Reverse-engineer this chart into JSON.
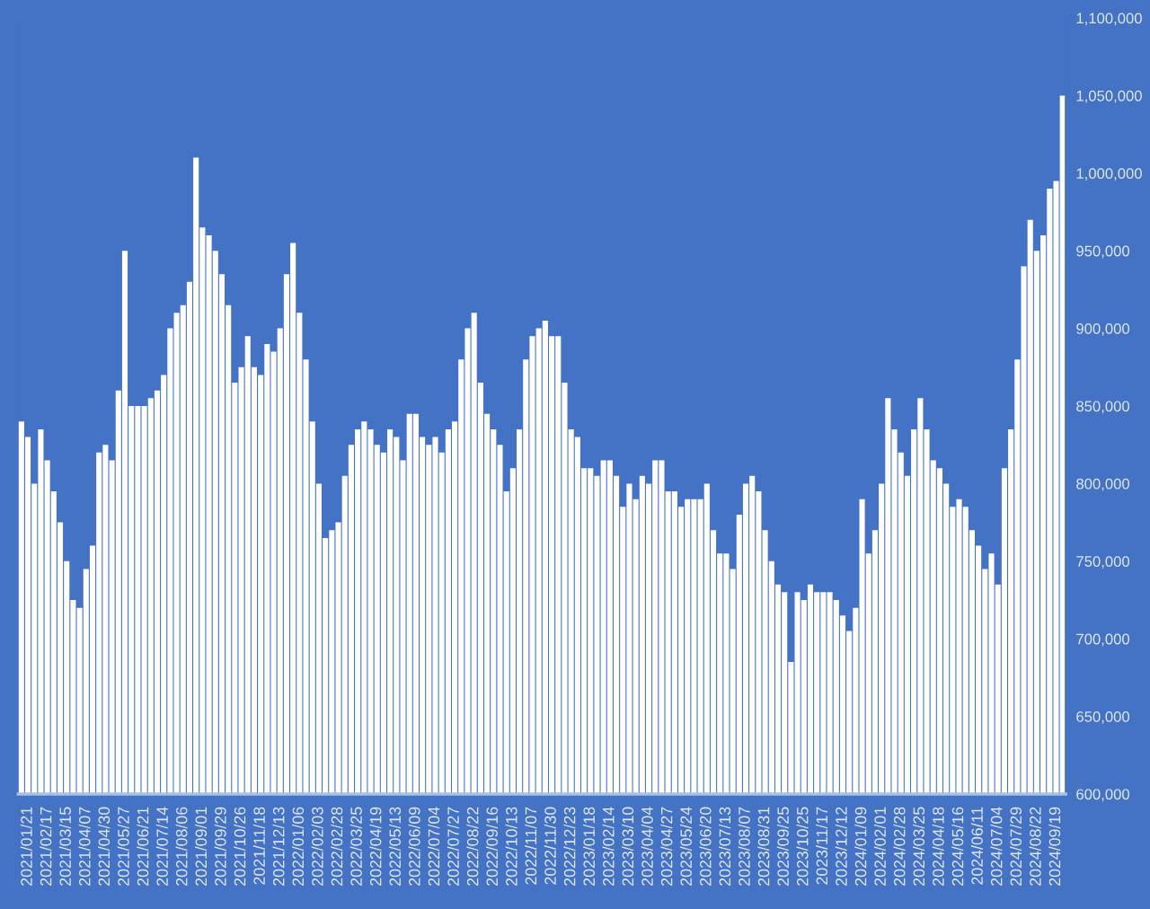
{
  "chart_data": {
    "type": "bar",
    "categories": [
      null,
      "2021/01/21",
      null,
      null,
      "2021/02/17",
      null,
      null,
      "2021/03/15",
      null,
      null,
      "2021/04/07",
      null,
      null,
      "2021/04/30",
      null,
      null,
      "2021/05/27",
      null,
      null,
      "2021/06/21",
      null,
      null,
      "2021/07/14",
      null,
      null,
      "2021/08/06",
      null,
      null,
      "2021/09/01",
      null,
      null,
      "2021/09/29",
      null,
      null,
      "2021/10/26",
      null,
      null,
      "2021/11/18",
      null,
      null,
      "2021/12/13",
      null,
      null,
      "2022/01/06",
      null,
      null,
      "2022/02/03",
      null,
      null,
      "2022/02/28",
      null,
      null,
      "2022/03/25",
      null,
      null,
      "2022/04/19",
      null,
      null,
      "2022/05/13",
      null,
      null,
      "2022/06/09",
      null,
      null,
      "2022/07/04",
      null,
      null,
      "2022/07/27",
      null,
      null,
      "2022/08/22",
      null,
      null,
      "2022/09/16",
      null,
      null,
      "2022/10/13",
      null,
      null,
      "2022/11/07",
      null,
      null,
      "2022/11/30",
      null,
      null,
      "2022/12/23",
      null,
      null,
      "2023/01/18",
      null,
      null,
      "2023/02/14",
      null,
      null,
      "2023/03/10",
      null,
      null,
      "2023/04/04",
      null,
      null,
      "2023/04/27",
      null,
      null,
      "2023/05/24",
      null,
      null,
      "2023/06/20",
      null,
      null,
      "2023/07/13",
      null,
      null,
      "2023/08/07",
      null,
      null,
      "2023/08/31",
      null,
      null,
      "2023/09/25",
      null,
      null,
      "2023/10/25",
      null,
      null,
      "2023/11/17",
      null,
      null,
      "2023/12/12",
      null,
      null,
      "2024/01/09",
      null,
      null,
      "2024/02/01",
      null,
      null,
      "2024/02/28",
      null,
      null,
      "2024/03/25",
      null,
      null,
      "2024/04/18",
      null,
      null,
      "2024/05/16",
      null,
      null,
      "2024/06/11",
      null,
      null,
      "2024/07/04",
      null,
      null,
      "2024/07/29",
      null,
      null,
      "2024/08/22",
      null,
      null,
      "2024/09/19",
      null
    ],
    "values": [
      840000,
      830000,
      800000,
      835000,
      815000,
      795000,
      775000,
      750000,
      725000,
      720000,
      745000,
      760000,
      820000,
      825000,
      815000,
      860000,
      950000,
      850000,
      850000,
      850000,
      855000,
      860000,
      870000,
      900000,
      910000,
      915000,
      930000,
      1010000,
      965000,
      960000,
      950000,
      935000,
      915000,
      865000,
      875000,
      895000,
      875000,
      870000,
      890000,
      885000,
      900000,
      935000,
      955000,
      910000,
      880000,
      840000,
      800000,
      765000,
      770000,
      775000,
      805000,
      825000,
      835000,
      840000,
      835000,
      825000,
      820000,
      835000,
      830000,
      815000,
      845000,
      845000,
      830000,
      825000,
      830000,
      820000,
      835000,
      840000,
      880000,
      900000,
      910000,
      865000,
      845000,
      835000,
      825000,
      795000,
      810000,
      835000,
      880000,
      895000,
      900000,
      905000,
      895000,
      895000,
      865000,
      835000,
      830000,
      810000,
      810000,
      805000,
      815000,
      815000,
      805000,
      785000,
      800000,
      790000,
      805000,
      800000,
      815000,
      815000,
      795000,
      795000,
      785000,
      790000,
      790000,
      790000,
      800000,
      770000,
      755000,
      755000,
      745000,
      780000,
      800000,
      805000,
      795000,
      770000,
      750000,
      735000,
      730000,
      685000,
      730000,
      725000,
      735000,
      730000,
      730000,
      730000,
      725000,
      715000,
      705000,
      720000,
      790000,
      755000,
      770000,
      800000,
      855000,
      835000,
      820000,
      805000,
      835000,
      855000,
      835000,
      815000,
      810000,
      800000,
      785000,
      790000,
      785000,
      770000,
      760000,
      745000,
      755000,
      735000,
      810000,
      835000,
      880000,
      940000,
      970000,
      950000,
      960000,
      990000,
      995000,
      1050000
    ],
    "color": "#ffffff",
    "ylim": [
      600000,
      1100000
    ],
    "yticks": [
      {
        "value": 600000,
        "label": "600,000"
      },
      {
        "value": 650000,
        "label": "650,000"
      },
      {
        "value": 700000,
        "label": "700,000"
      },
      {
        "value": 750000,
        "label": "750,000"
      },
      {
        "value": 800000,
        "label": "800,000"
      },
      {
        "value": 850000,
        "label": "850,000"
      },
      {
        "value": 900000,
        "label": "900,000"
      },
      {
        "value": 950000,
        "label": "950,000"
      },
      {
        "value": 1000000,
        "label": "1,000,000"
      },
      {
        "value": 1050000,
        "label": "1,050,000"
      },
      {
        "value": 1100000,
        "label": "1,100,000"
      }
    ]
  }
}
